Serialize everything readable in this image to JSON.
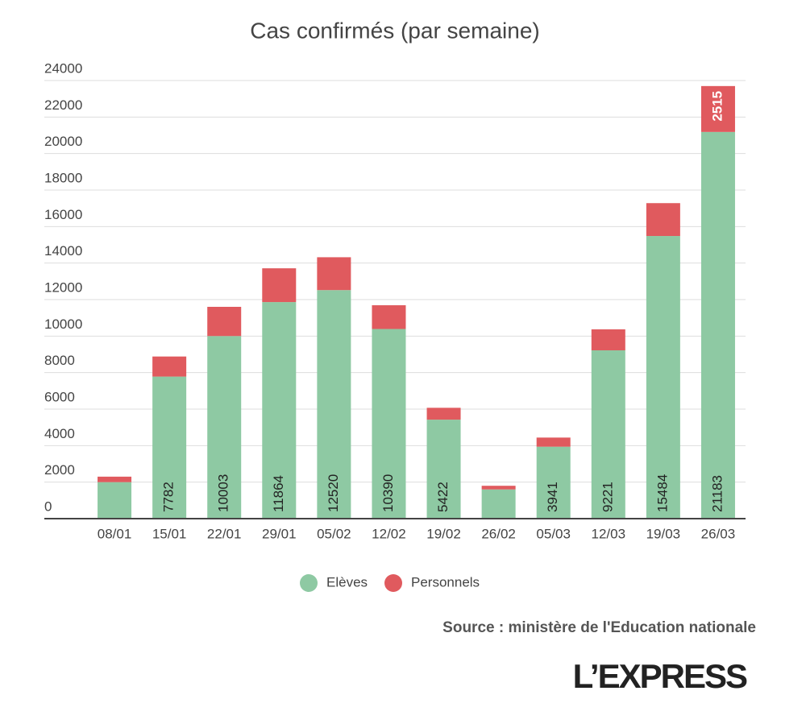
{
  "chart_data": {
    "type": "stacked_bar",
    "title": "Cas confirmés (par semaine)",
    "categories": [
      "08/01",
      "15/01",
      "22/01",
      "29/01",
      "05/02",
      "12/02",
      "19/02",
      "26/02",
      "05/03",
      "12/03",
      "19/03",
      "26/03"
    ],
    "series": [
      {
        "name": "Elèves",
        "color": "#8ec9a3",
        "values": [
          2000,
          7782,
          10003,
          11864,
          12520,
          10390,
          5422,
          1600,
          3941,
          9221,
          15484,
          21183
        ],
        "value_labels": [
          null,
          "7782",
          "10003",
          "11864",
          "12520",
          "10390",
          "5422",
          null,
          "3941",
          "9221",
          "15484",
          "21183"
        ]
      },
      {
        "name": "Personnels",
        "color": "#e05a5e",
        "values": [
          300,
          1100,
          1600,
          1850,
          1800,
          1300,
          650,
          200,
          500,
          1150,
          1800,
          2515
        ],
        "value_labels": [
          null,
          null,
          null,
          null,
          null,
          null,
          null,
          null,
          null,
          null,
          null,
          "2515"
        ]
      }
    ],
    "ylim": [
      0,
      24000
    ],
    "yticks": [
      0,
      2000,
      4000,
      6000,
      8000,
      10000,
      12000,
      14000,
      16000,
      18000,
      20000,
      22000,
      24000
    ],
    "grid": true,
    "legend": "bottom",
    "source": "Source : ministère de l'Education nationale",
    "logo": "L’EXPRESS"
  }
}
